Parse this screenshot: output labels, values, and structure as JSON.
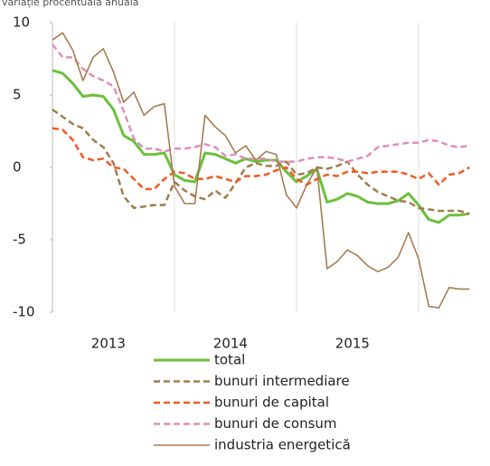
{
  "chart_data": {
    "type": "line",
    "subtitle": "variație procentuală anuală",
    "categories": [
      null,
      null,
      null,
      null,
      null,
      null,
      "2013",
      null,
      null,
      null,
      null,
      null,
      null,
      null,
      null,
      null,
      null,
      null,
      "2014",
      null,
      null,
      null,
      null,
      null,
      null,
      null,
      null,
      null,
      null,
      null,
      "2015",
      null,
      null,
      null,
      null,
      null,
      null,
      null,
      null,
      null,
      null,
      null
    ],
    "ylim": [
      -10,
      10
    ],
    "yticks": [
      10,
      5,
      0,
      -5,
      -10
    ],
    "series": [
      {
        "name": "total",
        "color": "#6cbf3c",
        "dash": false,
        "values": [
          6.7,
          6.5,
          5.8,
          4.9,
          5.0,
          4.9,
          4.0,
          2.2,
          1.8,
          0.9,
          0.9,
          1.0,
          -0.5,
          -0.9,
          -1.0,
          1.0,
          0.9,
          0.6,
          0.3,
          0.6,
          0.4,
          0.5,
          0.5,
          -0.3,
          -1.0,
          -0.6,
          -0.1,
          -2.4,
          -2.2,
          -1.8,
          -2.0,
          -2.4,
          -2.5,
          -2.5,
          -2.3,
          -1.8,
          -2.6,
          -3.6,
          -3.8,
          -3.3,
          -3.3,
          -3.2
        ]
      },
      {
        "name": "bunuri intermediare",
        "color": "#a07d4b",
        "dash": true,
        "values": [
          4.0,
          3.5,
          3.0,
          2.7,
          1.9,
          1.4,
          0.3,
          -2.0,
          -2.8,
          -2.7,
          -2.6,
          -2.6,
          -1.0,
          -1.6,
          -2.0,
          -2.2,
          -1.6,
          -2.1,
          -1.1,
          0.0,
          0.3,
          0.1,
          0.1,
          0.4,
          -0.5,
          -0.4,
          0.0,
          -0.1,
          0.1,
          0.4,
          -0.5,
          -1.2,
          -1.7,
          -2.0,
          -2.3,
          -2.4,
          -2.8,
          -2.9,
          -3.0,
          -3.0,
          -3.0,
          -3.2
        ]
      },
      {
        "name": "bunuri de capital",
        "color": "#f15a22",
        "dash": true,
        "values": [
          2.7,
          2.6,
          1.9,
          0.7,
          0.5,
          0.6,
          0.0,
          -0.1,
          -0.8,
          -1.5,
          -1.5,
          -0.8,
          -0.3,
          -0.4,
          -0.8,
          -0.8,
          -0.6,
          -0.8,
          -1.0,
          -0.6,
          -0.6,
          -0.5,
          -0.2,
          0.0,
          -0.8,
          -1.2,
          -0.8,
          -0.5,
          -0.6,
          -0.3,
          -0.3,
          -0.4,
          -0.3,
          -0.3,
          -0.3,
          -0.5,
          -0.8,
          -0.4,
          -1.2,
          -0.5,
          -0.4,
          0.0
        ]
      },
      {
        "name": "bunuri de consum",
        "color": "#e08fb8",
        "dash": true,
        "values": [
          8.5,
          7.6,
          7.6,
          6.8,
          6.3,
          6.0,
          5.6,
          3.9,
          2.0,
          1.3,
          1.3,
          1.1,
          1.3,
          1.3,
          1.4,
          1.6,
          1.4,
          0.8,
          0.9,
          0.6,
          0.6,
          0.6,
          0.4,
          0.4,
          0.4,
          0.6,
          0.7,
          0.7,
          0.6,
          0.4,
          0.6,
          0.8,
          1.4,
          1.5,
          1.6,
          1.7,
          1.7,
          1.9,
          1.8,
          1.5,
          1.4,
          1.5
        ]
      },
      {
        "name": "industria energetică",
        "color": "#a67c52",
        "dash": false,
        "values": [
          8.8,
          9.3,
          8.1,
          6.0,
          7.6,
          8.2,
          6.6,
          4.5,
          5.2,
          3.6,
          4.2,
          4.4,
          -1.3,
          -2.5,
          -2.5,
          3.6,
          2.8,
          2.2,
          1.0,
          1.5,
          0.5,
          1.1,
          0.9,
          -1.9,
          -2.8,
          -1.2,
          0.0,
          -7.0,
          -6.5,
          -5.7,
          -6.1,
          -6.8,
          -7.2,
          -6.9,
          -6.2,
          -4.5,
          -6.3,
          -9.6,
          -9.7,
          -8.3,
          -8.4,
          -8.4
        ]
      }
    ]
  }
}
